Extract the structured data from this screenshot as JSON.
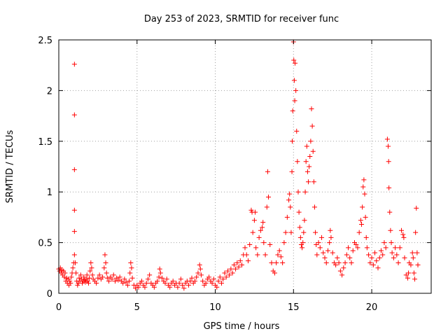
{
  "chart_data": {
    "type": "scatter",
    "title": "Day 253 of 2023, SRMTID for receiver func",
    "xlabel": "GPS time / hours",
    "ylabel": "SRMTID / TECUs",
    "xlim": [
      0,
      23.8
    ],
    "ylim": [
      0,
      2.5
    ],
    "xticks": [
      0,
      5,
      10,
      15,
      20
    ],
    "xtick_labels": [
      "0",
      "5",
      "10",
      "15",
      "20"
    ],
    "yticks": [
      0,
      0.5,
      1,
      1.5,
      2,
      2.5
    ],
    "ytick_labels": [
      "0",
      "0.5",
      "1",
      "1.5",
      "2",
      "2.5"
    ],
    "grid": true,
    "marker": "+",
    "color": "#ff0000",
    "series": [
      {
        "name": "SRMTID",
        "points": [
          [
            0.0,
            0.24
          ],
          [
            0.05,
            0.22
          ],
          [
            0.1,
            0.25
          ],
          [
            0.15,
            0.2
          ],
          [
            0.2,
            0.23
          ],
          [
            0.25,
            0.18
          ],
          [
            0.3,
            0.22
          ],
          [
            0.35,
            0.16
          ],
          [
            0.4,
            0.2
          ],
          [
            0.45,
            0.12
          ],
          [
            0.5,
            0.15
          ],
          [
            0.55,
            0.1
          ],
          [
            0.6,
            0.14
          ],
          [
            0.65,
            0.08
          ],
          [
            0.7,
            0.12
          ],
          [
            0.75,
            0.1
          ],
          [
            0.8,
            0.16
          ],
          [
            0.85,
            0.2
          ],
          [
            0.9,
            0.25
          ],
          [
            0.95,
            0.3
          ],
          [
            1.0,
            2.26
          ],
          [
            1.0,
            1.76
          ],
          [
            1.0,
            1.22
          ],
          [
            1.0,
            0.82
          ],
          [
            1.0,
            0.61
          ],
          [
            1.0,
            0.38
          ],
          [
            1.05,
            0.3
          ],
          [
            1.1,
            0.2
          ],
          [
            1.15,
            0.12
          ],
          [
            1.2,
            0.08
          ],
          [
            1.25,
            0.1
          ],
          [
            1.3,
            0.15
          ],
          [
            1.35,
            0.12
          ],
          [
            1.4,
            0.18
          ],
          [
            1.45,
            0.14
          ],
          [
            1.5,
            0.1
          ],
          [
            1.55,
            0.12
          ],
          [
            1.6,
            0.16
          ],
          [
            1.65,
            0.13
          ],
          [
            1.7,
            0.11
          ],
          [
            1.75,
            0.14
          ],
          [
            1.8,
            0.18
          ],
          [
            1.85,
            0.12
          ],
          [
            1.9,
            0.1
          ],
          [
            1.95,
            0.15
          ],
          [
            2.0,
            0.22
          ],
          [
            2.05,
            0.3
          ],
          [
            2.1,
            0.25
          ],
          [
            2.15,
            0.18
          ],
          [
            2.2,
            0.14
          ],
          [
            2.3,
            0.12
          ],
          [
            2.4,
            0.1
          ],
          [
            2.5,
            0.15
          ],
          [
            2.6,
            0.18
          ],
          [
            2.7,
            0.14
          ],
          [
            2.8,
            0.16
          ],
          [
            2.9,
            0.25
          ],
          [
            2.95,
            0.38
          ],
          [
            3.0,
            0.3
          ],
          [
            3.05,
            0.2
          ],
          [
            3.1,
            0.15
          ],
          [
            3.2,
            0.12
          ],
          [
            3.3,
            0.16
          ],
          [
            3.4,
            0.14
          ],
          [
            3.5,
            0.18
          ],
          [
            3.6,
            0.12
          ],
          [
            3.7,
            0.15
          ],
          [
            3.8,
            0.13
          ],
          [
            3.9,
            0.16
          ],
          [
            4.0,
            0.12
          ],
          [
            4.1,
            0.1
          ],
          [
            4.2,
            0.14
          ],
          [
            4.3,
            0.11
          ],
          [
            4.4,
            0.08
          ],
          [
            4.5,
            0.12
          ],
          [
            4.55,
            0.2
          ],
          [
            4.6,
            0.3
          ],
          [
            4.65,
            0.25
          ],
          [
            4.7,
            0.15
          ],
          [
            4.8,
            0.08
          ],
          [
            4.9,
            0.05
          ],
          [
            5.0,
            0.08
          ],
          [
            5.1,
            0.06
          ],
          [
            5.2,
            0.1
          ],
          [
            5.3,
            0.12
          ],
          [
            5.4,
            0.08
          ],
          [
            5.5,
            0.06
          ],
          [
            5.6,
            0.1
          ],
          [
            5.7,
            0.14
          ],
          [
            5.8,
            0.18
          ],
          [
            5.9,
            0.1
          ],
          [
            6.0,
            0.08
          ],
          [
            6.1,
            0.06
          ],
          [
            6.2,
            0.1
          ],
          [
            6.3,
            0.12
          ],
          [
            6.4,
            0.16
          ],
          [
            6.45,
            0.24
          ],
          [
            6.5,
            0.2
          ],
          [
            6.6,
            0.15
          ],
          [
            6.7,
            0.12
          ],
          [
            6.8,
            0.1
          ],
          [
            6.9,
            0.14
          ],
          [
            7.0,
            0.08
          ],
          [
            7.1,
            0.06
          ],
          [
            7.2,
            0.1
          ],
          [
            7.3,
            0.12
          ],
          [
            7.4,
            0.08
          ],
          [
            7.5,
            0.1
          ],
          [
            7.6,
            0.06
          ],
          [
            7.7,
            0.1
          ],
          [
            7.8,
            0.14
          ],
          [
            7.9,
            0.08
          ],
          [
            8.0,
            0.05
          ],
          [
            8.1,
            0.1
          ],
          [
            8.2,
            0.12
          ],
          [
            8.3,
            0.08
          ],
          [
            8.4,
            0.12
          ],
          [
            8.5,
            0.15
          ],
          [
            8.6,
            0.1
          ],
          [
            8.7,
            0.12
          ],
          [
            8.8,
            0.16
          ],
          [
            8.9,
            0.2
          ],
          [
            9.0,
            0.28
          ],
          [
            9.05,
            0.24
          ],
          [
            9.1,
            0.18
          ],
          [
            9.2,
            0.12
          ],
          [
            9.3,
            0.08
          ],
          [
            9.4,
            0.1
          ],
          [
            9.5,
            0.14
          ],
          [
            9.6,
            0.16
          ],
          [
            9.7,
            0.12
          ],
          [
            9.8,
            0.1
          ],
          [
            9.9,
            0.14
          ],
          [
            10.0,
            0.08
          ],
          [
            10.1,
            0.06
          ],
          [
            10.2,
            0.12
          ],
          [
            10.3,
            0.16
          ],
          [
            10.4,
            0.1
          ],
          [
            10.5,
            0.14
          ],
          [
            10.6,
            0.2
          ],
          [
            10.7,
            0.16
          ],
          [
            10.8,
            0.22
          ],
          [
            10.9,
            0.18
          ],
          [
            11.0,
            0.24
          ],
          [
            11.1,
            0.2
          ],
          [
            11.2,
            0.28
          ],
          [
            11.3,
            0.24
          ],
          [
            11.4,
            0.3
          ],
          [
            11.5,
            0.26
          ],
          [
            11.6,
            0.32
          ],
          [
            11.7,
            0.28
          ],
          [
            11.8,
            0.38
          ],
          [
            11.9,
            0.45
          ],
          [
            12.0,
            0.38
          ],
          [
            12.1,
            0.32
          ],
          [
            12.2,
            0.48
          ],
          [
            12.3,
            0.82
          ],
          [
            12.35,
            0.8
          ],
          [
            12.4,
            0.6
          ],
          [
            12.5,
            0.72
          ],
          [
            12.55,
            0.8
          ],
          [
            12.6,
            0.45
          ],
          [
            12.7,
            0.38
          ],
          [
            12.8,
            0.55
          ],
          [
            12.9,
            0.62
          ],
          [
            13.0,
            0.65
          ],
          [
            13.05,
            0.7
          ],
          [
            13.1,
            0.5
          ],
          [
            13.2,
            0.38
          ],
          [
            13.3,
            0.85
          ],
          [
            13.35,
            1.2
          ],
          [
            13.4,
            0.95
          ],
          [
            13.5,
            0.48
          ],
          [
            13.6,
            0.3
          ],
          [
            13.7,
            0.22
          ],
          [
            13.8,
            0.2
          ],
          [
            13.9,
            0.3
          ],
          [
            14.0,
            0.38
          ],
          [
            14.1,
            0.42
          ],
          [
            14.2,
            0.36
          ],
          [
            14.3,
            0.3
          ],
          [
            14.4,
            0.5
          ],
          [
            14.5,
            0.6
          ],
          [
            14.6,
            0.75
          ],
          [
            14.7,
            0.92
          ],
          [
            14.75,
            0.98
          ],
          [
            14.8,
            0.85
          ],
          [
            14.85,
            0.6
          ],
          [
            14.9,
            1.2
          ],
          [
            14.92,
            1.5
          ],
          [
            14.95,
            1.8
          ],
          [
            15.0,
            2.48
          ],
          [
            15.02,
            2.3
          ],
          [
            15.05,
            2.1
          ],
          [
            15.08,
            1.9
          ],
          [
            15.1,
            2.27
          ],
          [
            15.15,
            2.0
          ],
          [
            15.2,
            1.6
          ],
          [
            15.25,
            1.3
          ],
          [
            15.3,
            1.0
          ],
          [
            15.35,
            0.8
          ],
          [
            15.4,
            0.65
          ],
          [
            15.45,
            0.55
          ],
          [
            15.5,
            0.48
          ],
          [
            15.55,
            0.45
          ],
          [
            15.6,
            0.5
          ],
          [
            15.65,
            0.6
          ],
          [
            15.7,
            0.72
          ],
          [
            15.75,
            1.0
          ],
          [
            15.8,
            1.3
          ],
          [
            15.85,
            1.45
          ],
          [
            15.9,
            1.2
          ],
          [
            15.95,
            1.1
          ],
          [
            16.0,
            1.25
          ],
          [
            16.05,
            1.35
          ],
          [
            16.1,
            1.5
          ],
          [
            16.15,
            1.82
          ],
          [
            16.2,
            1.65
          ],
          [
            16.25,
            1.4
          ],
          [
            16.3,
            1.1
          ],
          [
            16.35,
            0.85
          ],
          [
            16.4,
            0.6
          ],
          [
            16.45,
            0.48
          ],
          [
            16.5,
            0.38
          ],
          [
            16.6,
            0.5
          ],
          [
            16.7,
            0.45
          ],
          [
            16.8,
            0.55
          ],
          [
            16.9,
            0.4
          ],
          [
            17.0,
            0.35
          ],
          [
            17.1,
            0.3
          ],
          [
            17.2,
            0.42
          ],
          [
            17.3,
            0.5
          ],
          [
            17.35,
            0.62
          ],
          [
            17.4,
            0.55
          ],
          [
            17.5,
            0.4
          ],
          [
            17.6,
            0.3
          ],
          [
            17.7,
            0.28
          ],
          [
            17.8,
            0.35
          ],
          [
            17.9,
            0.3
          ],
          [
            18.0,
            0.22
          ],
          [
            18.1,
            0.18
          ],
          [
            18.2,
            0.25
          ],
          [
            18.3,
            0.3
          ],
          [
            18.4,
            0.38
          ],
          [
            18.5,
            0.45
          ],
          [
            18.6,
            0.35
          ],
          [
            18.7,
            0.3
          ],
          [
            18.8,
            0.42
          ],
          [
            18.9,
            0.5
          ],
          [
            19.0,
            0.48
          ],
          [
            19.1,
            0.45
          ],
          [
            19.2,
            0.6
          ],
          [
            19.3,
            0.72
          ],
          [
            19.35,
            0.68
          ],
          [
            19.4,
            0.85
          ],
          [
            19.45,
            1.05
          ],
          [
            19.5,
            1.12
          ],
          [
            19.55,
            0.98
          ],
          [
            19.6,
            0.75
          ],
          [
            19.65,
            0.55
          ],
          [
            19.7,
            0.45
          ],
          [
            19.8,
            0.38
          ],
          [
            19.9,
            0.3
          ],
          [
            20.0,
            0.35
          ],
          [
            20.1,
            0.28
          ],
          [
            20.2,
            0.4
          ],
          [
            20.3,
            0.32
          ],
          [
            20.4,
            0.25
          ],
          [
            20.5,
            0.35
          ],
          [
            20.6,
            0.42
          ],
          [
            20.7,
            0.38
          ],
          [
            20.8,
            0.5
          ],
          [
            20.9,
            0.45
          ],
          [
            21.0,
            1.52
          ],
          [
            21.05,
            1.45
          ],
          [
            21.08,
            1.3
          ],
          [
            21.1,
            1.04
          ],
          [
            21.15,
            0.8
          ],
          [
            21.2,
            0.62
          ],
          [
            21.25,
            0.5
          ],
          [
            21.3,
            0.4
          ],
          [
            21.4,
            0.35
          ],
          [
            21.5,
            0.45
          ],
          [
            21.6,
            0.38
          ],
          [
            21.7,
            0.3
          ],
          [
            21.8,
            0.45
          ],
          [
            21.9,
            0.62
          ],
          [
            22.0,
            0.58
          ],
          [
            22.05,
            0.55
          ],
          [
            22.1,
            0.35
          ],
          [
            22.2,
            0.18
          ],
          [
            22.3,
            0.15
          ],
          [
            22.35,
            0.2
          ],
          [
            22.4,
            0.3
          ],
          [
            22.5,
            0.28
          ],
          [
            22.6,
            0.4
          ],
          [
            22.65,
            0.35
          ],
          [
            22.7,
            0.2
          ],
          [
            22.75,
            0.14
          ],
          [
            22.8,
            0.6
          ],
          [
            22.85,
            0.84
          ],
          [
            22.9,
            0.4
          ],
          [
            22.95,
            0.28
          ]
        ]
      }
    ]
  }
}
